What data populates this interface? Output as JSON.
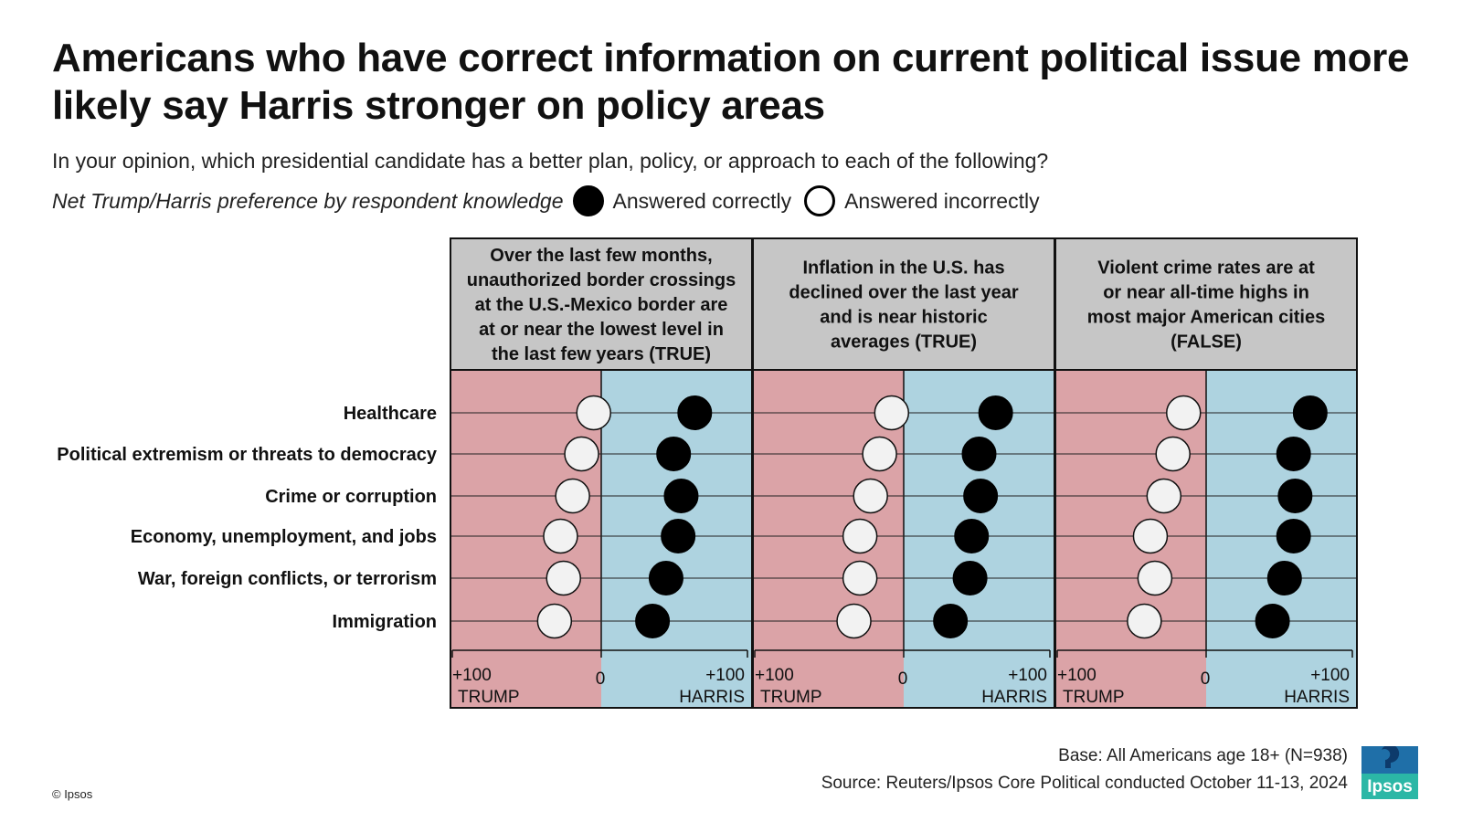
{
  "title": "Americans who have correct information on current political issue more likely say Harris stronger on policy areas",
  "subtitle": "In your opinion, which presidential candidate has a better plan, policy, or approach to each of the following?",
  "legend": {
    "note": "Net Trump/Harris preference by respondent knowledge",
    "correct_label": "Answered correctly",
    "incorrect_label": "Answered incorrectly"
  },
  "colors": {
    "trump_side": "#dba3a7",
    "harris_side": "#aed3e0",
    "header_bg": "#c6c6c6",
    "correct": "#000000",
    "incorrect": "#f2f2f2"
  },
  "chart_data": {
    "type": "scatter",
    "xlim": [
      -100,
      100
    ],
    "x_direction": "negative = Trump, positive = Harris",
    "axis_labels": {
      "left_value": "+100",
      "left_name": "TRUMP",
      "center": "0",
      "right_value": "+100",
      "right_name": "HARRIS"
    },
    "categories": [
      "Healthcare",
      "Political extremism or threats to democracy",
      "Crime or corruption",
      "Economy, unemployment, and jobs",
      "War, foreign conflicts, or terrorism",
      "Immigration"
    ],
    "panels": [
      {
        "header": "Over the last few months, unauthorized border crossings at the U.S.-Mexico border are at or near the lowest level in the last few years (TRUE)",
        "series": [
          {
            "name": "Answered correctly",
            "values": [
              62,
              48,
              53,
              51,
              43,
              34
            ]
          },
          {
            "name": "Answered incorrectly",
            "values": [
              -5,
              -13,
              -19,
              -27,
              -25,
              -31
            ]
          }
        ]
      },
      {
        "header": "Inflation in the U.S. has declined over the last year and is near historic averages (TRUE)",
        "series": [
          {
            "name": "Answered correctly",
            "values": [
              61,
              50,
              51,
              45,
              44,
              31
            ]
          },
          {
            "name": "Answered incorrectly",
            "values": [
              -8,
              -16,
              -22,
              -29,
              -29,
              -33
            ]
          }
        ]
      },
      {
        "header": "Violent crime rates are at or near all-time highs in most major American cities (FALSE)",
        "series": [
          {
            "name": "Answered correctly",
            "values": [
              69,
              58,
              59,
              58,
              52,
              44
            ]
          },
          {
            "name": "Answered incorrectly",
            "values": [
              -15,
              -22,
              -28,
              -37,
              -34,
              -41
            ]
          }
        ]
      }
    ]
  },
  "footer": {
    "base": "Base:  All Americans age 18+ (N=938)",
    "source": "Source:  Reuters/Ipsos Core Political conducted October 11-13, 2024",
    "copyright": "© Ipsos",
    "logo_text": "Ipsos"
  }
}
